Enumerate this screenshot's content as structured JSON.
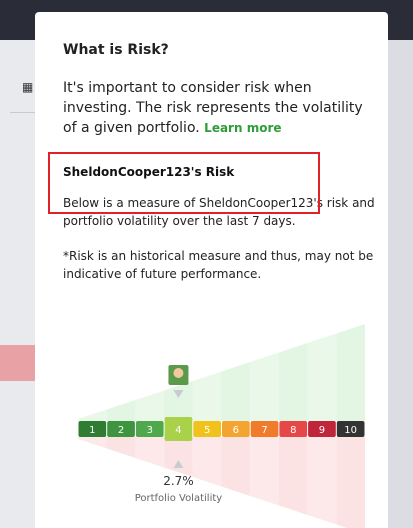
{
  "popup": {
    "title": "What is Risk?",
    "intro": "It's important to consider risk when investing. The risk represents the volatility of a given portfolio.",
    "link": "Learn more",
    "user_heading": "SheldonCooper123's Risk",
    "description": "Below is a measure of SheldonCooper123's risk and portfolio volatility over the last 7 days.",
    "disclaimer": "*Risk is an historical measure and thus, may not be indicative of future performance.",
    "scale": [
      "1",
      "2",
      "3",
      "4",
      "5",
      "6",
      "7",
      "8",
      "9",
      "10"
    ],
    "volatility": "2.7%",
    "volatility_label": "Portfolio Volatility"
  }
}
